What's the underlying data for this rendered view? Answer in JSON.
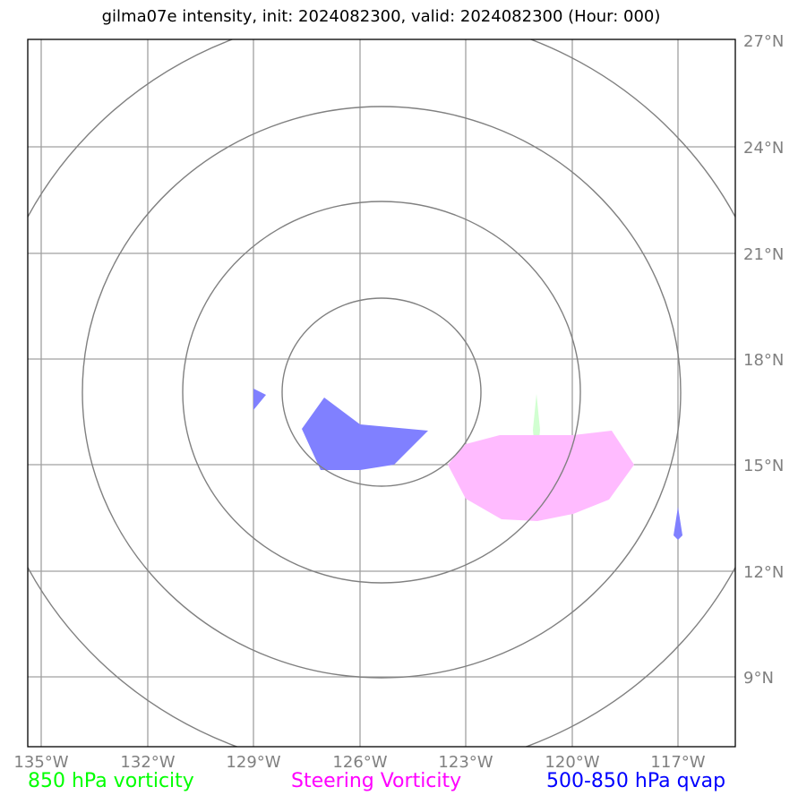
{
  "title": "gilma07e intensity, init: 2024082300, valid: 2024082300 (Hour: 000)",
  "lon_labels": [
    "135°W",
    "132°W",
    "129°W",
    "126°W",
    "123°W",
    "120°W",
    "117°W"
  ],
  "lat_labels": [
    "27°N",
    "24°N",
    "21°N",
    "18°N",
    "15°N",
    "12°N",
    "9°N"
  ],
  "legend": [
    {
      "label": "850 hPa vorticity",
      "color": "#00ff00"
    },
    {
      "label": "Steering Vorticity",
      "color": "#ff00ff"
    },
    {
      "label": "500-850 hPa qvap",
      "color": "#0000ff"
    }
  ],
  "colors": {
    "grid": "#a0a0a0",
    "range_rings": "#808080",
    "qvap_fill": "#8080ff",
    "steering_fill": "#ffbbff",
    "vorticity_fill": "#ccffcc"
  }
}
